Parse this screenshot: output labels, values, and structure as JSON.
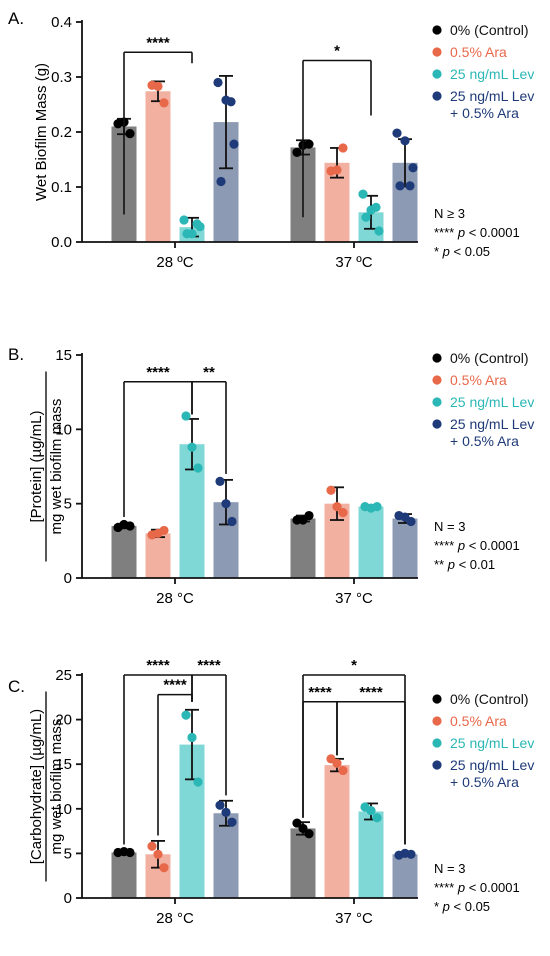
{
  "colors": {
    "control": "#000000",
    "ara": "#e8684a",
    "lev": "#2bb7b5",
    "levara": "#1e3a78",
    "control_bar": "#7f7f7f",
    "ara_bar": "#f1b0a0",
    "lev_bar": "#7fd8d6",
    "levara_bar": "#8d9ab3"
  },
  "legend": [
    {
      "key": "control",
      "label": "0% (Control)"
    },
    {
      "key": "ara",
      "label": "0.5% Ara"
    },
    {
      "key": "lev",
      "label": "25 ng/mL Lev"
    },
    {
      "key": "levara",
      "label": "25 ng/mL Lev",
      "label2": "+ 0.5% Ara"
    }
  ],
  "chart_data": [
    {
      "type": "bar",
      "panel_label": "A.",
      "ylabel": "Wet Biofilm Mass (g)",
      "ylabel_sub": "",
      "ylim": [
        0,
        0.4
      ],
      "yticks": [
        "0.0",
        "0.1",
        "0.2",
        "0.3",
        "0.4"
      ],
      "categories": [
        "28 ºC",
        "37 ºC"
      ],
      "series": [
        {
          "key": "control",
          "name": "0% (Control)",
          "values": [
            0.21,
            0.172
          ],
          "err": [
            0.014,
            0.013
          ],
          "points": [
            [
              0.215,
              0.197,
              0.218
            ],
            [
              0.163,
              0.178,
              0.176
            ]
          ]
        },
        {
          "key": "ara",
          "name": "0.5% Ara",
          "values": [
            0.274,
            0.144
          ],
          "err": [
            0.018,
            0.027
          ],
          "points": [
            [
              0.285,
              0.253,
              0.283
            ],
            [
              0.129,
              0.171,
              0.131
            ]
          ]
        },
        {
          "key": "lev",
          "name": "25 ng/mL Lev",
          "values": [
            0.027,
            0.054
          ],
          "err": [
            0.017,
            0.03
          ],
          "points": [
            [
              0.04,
              0.015,
              0.028,
              0.015,
              0.033
            ],
            [
              0.087,
              0.058,
              0.02,
              0.045,
              0.063
            ]
          ]
        },
        {
          "key": "levara",
          "name": "25 ng/mL Lev + 0.5% Ara",
          "values": [
            0.218,
            0.144
          ],
          "err": [
            0.084,
            0.043
          ],
          "points": [
            [
              0.29,
              0.258,
              0.178,
              0.11,
              0.255
            ],
            [
              0.198,
              0.184,
              0.135,
              0.102,
              0.102
            ]
          ]
        }
      ],
      "significance": [
        {
          "label": "****",
          "cat": 0,
          "from": 0,
          "to": 2,
          "y": 0.345,
          "drop": [
            0.05,
            0.325
          ]
        },
        {
          "label": "*",
          "cat": 1,
          "from": 0,
          "to": 2,
          "y": 0.33,
          "drop": [
            0.045,
            0.23
          ]
        }
      ],
      "notes": [
        {
          "text": "N ≥ 3"
        },
        {
          "stars": "****",
          "text": " < 0.0001"
        },
        {
          "stars": "*",
          "text": " < 0.05"
        }
      ]
    },
    {
      "type": "bar",
      "panel_label": "B.",
      "ylabel": "[Protein] (µg/mL)",
      "ylabel_sub": "mg wet biofilm mass",
      "ylim": [
        0,
        15
      ],
      "yticks": [
        "0",
        "5",
        "10",
        "15"
      ],
      "categories": [
        "28 °C",
        "37 °C"
      ],
      "series": [
        {
          "key": "control",
          "name": "0% (Control)",
          "values": [
            3.5,
            4.0
          ],
          "err": [
            0.15,
            0.2
          ],
          "points": [
            [
              3.4,
              3.5,
              3.6
            ],
            [
              3.9,
              4.2,
              3.9
            ]
          ]
        },
        {
          "key": "ara",
          "name": "0.5% Ara",
          "values": [
            3.0,
            5.0
          ],
          "err": [
            0.25,
            1.1
          ],
          "points": [
            [
              2.9,
              3.2,
              3.0
            ],
            [
              5.9,
              4.4,
              4.8
            ]
          ]
        },
        {
          "key": "lev",
          "name": "25 ng/mL Lev",
          "values": [
            9.0,
            4.8
          ],
          "err": [
            1.7,
            0.1
          ],
          "points": [
            [
              10.9,
              7.4,
              8.8
            ],
            [
              4.8,
              4.8,
              4.7
            ]
          ]
        },
        {
          "key": "levara",
          "name": "25 ng/mL Lev + 0.5% Ara",
          "values": [
            5.1,
            4.0
          ],
          "err": [
            1.5,
            0.3
          ],
          "points": [
            [
              6.5,
              3.8,
              5.0
            ],
            [
              4.2,
              3.8,
              4.1
            ]
          ]
        }
      ],
      "significance": [
        {
          "label": "****",
          "cat": 0,
          "from": 0,
          "to": 2,
          "y": 13.2,
          "drop": [
            4.1,
            11.0
          ]
        },
        {
          "label": "**",
          "cat": 0,
          "from": 2,
          "to": 3,
          "y": 13.2,
          "drop": [
            11.0,
            7.0
          ]
        }
      ],
      "notes": [
        {
          "text": "N = 3"
        },
        {
          "stars": "****",
          "text": " < 0.0001"
        },
        {
          "stars": "**",
          "text": " < 0.01"
        }
      ]
    },
    {
      "type": "bar",
      "panel_label": "C.",
      "ylabel": "[Carbohydrate] (µg/mL)",
      "ylabel_sub": "mg wet biofilm mass",
      "ylim": [
        0,
        25
      ],
      "yticks": [
        "0",
        "5",
        "10",
        "15",
        "20",
        "25"
      ],
      "categories": [
        "28 °C",
        "37 °C"
      ],
      "series": [
        {
          "key": "control",
          "name": "0% (Control)",
          "values": [
            5.1,
            7.8
          ],
          "err": [
            0.1,
            0.7
          ],
          "points": [
            [
              5.1,
              5.1,
              5.2
            ],
            [
              8.4,
              7.2,
              7.8
            ]
          ]
        },
        {
          "key": "ara",
          "name": "0.5% Ara",
          "values": [
            4.9,
            14.9
          ],
          "err": [
            1.5,
            0.7
          ],
          "points": [
            [
              5.8,
              3.4,
              4.9
            ],
            [
              15.6,
              14.3,
              15.1
            ]
          ]
        },
        {
          "key": "lev",
          "name": "25 ng/mL Lev",
          "values": [
            17.2,
            9.7
          ],
          "err": [
            3.9,
            0.9
          ],
          "points": [
            [
              20.5,
              13.0,
              18.0
            ],
            [
              10.2,
              9.0,
              9.8
            ]
          ]
        },
        {
          "key": "levara",
          "name": "25 ng/mL Lev + 0.5% Ara",
          "values": [
            9.5,
            4.9
          ],
          "err": [
            1.4,
            0.2
          ],
          "points": [
            [
              10.4,
              8.5,
              9.6
            ],
            [
              4.8,
              4.9,
              5.0
            ]
          ]
        }
      ],
      "significance": [
        {
          "label": "****",
          "cat": 0,
          "from": 0,
          "to": 2,
          "y": 25.0,
          "drop": [
            6.0,
            22.0
          ]
        },
        {
          "label": "****",
          "cat": 0,
          "from": 2,
          "to": 3,
          "y": 25.0,
          "drop": [
            22.0,
            11.5
          ]
        },
        {
          "label": "****",
          "cat": 0,
          "from": 1,
          "to": 2,
          "y": 22.8,
          "drop": [
            7.0,
            22.0
          ]
        },
        {
          "label": "*",
          "cat": 1,
          "from": 0,
          "to": 3,
          "y": 25.0,
          "drop": [
            9.0,
            6.0
          ]
        },
        {
          "label": "****",
          "cat": 1,
          "from": 0,
          "to": 1,
          "y": 22.0,
          "drop": [
            9.0,
            16.0
          ]
        },
        {
          "label": "****",
          "cat": 1,
          "from": 1,
          "to": 3,
          "y": 22.0,
          "drop": [
            16.0,
            6.0
          ]
        }
      ],
      "notes": [
        {
          "text": "N = 3"
        },
        {
          "stars": "****",
          "text": " < 0.0001"
        },
        {
          "stars": "*",
          "text": " < 0.05"
        }
      ]
    }
  ]
}
